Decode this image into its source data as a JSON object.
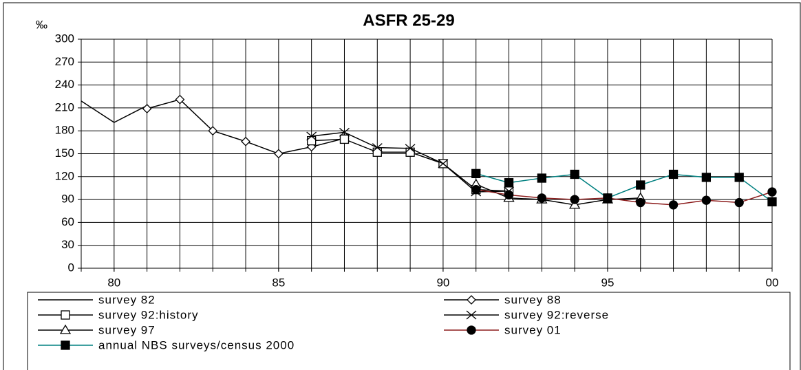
{
  "chart_data": {
    "type": "line",
    "title": "ASFR 25-29",
    "y_label": "‰",
    "xlim": [
      79,
      100
    ],
    "xticks": [
      80,
      85,
      90,
      95,
      {
        "value": 100,
        "label": "00"
      }
    ],
    "ylim": [
      0,
      300
    ],
    "yticks": [
      0,
      30,
      60,
      90,
      120,
      150,
      180,
      210,
      240,
      270,
      300
    ],
    "grid": true,
    "series": [
      {
        "name": "survey 82",
        "color": "#000000",
        "marker": "none",
        "marker_fill": "none",
        "x": [
          79,
          80,
          81
        ],
        "values": [
          219,
          191,
          213
        ]
      },
      {
        "name": "survey 88",
        "color": "#000000",
        "marker": "diamond",
        "marker_fill": "#ffffff",
        "x": [
          81,
          82,
          83,
          84,
          85,
          86,
          87
        ],
        "values": [
          209,
          221,
          180,
          166,
          150,
          159,
          170
        ]
      },
      {
        "name": "survey 92:history",
        "color": "#000000",
        "marker": "square",
        "marker_fill": "#ffffff",
        "x": [
          86,
          87,
          88,
          89,
          90,
          91,
          92
        ],
        "values": [
          167,
          169,
          152,
          152,
          137,
          103,
          101
        ]
      },
      {
        "name": "survey 92:reverse",
        "color": "#000000",
        "marker": "cross",
        "marker_fill": "none",
        "x": [
          86,
          87,
          88,
          89,
          90,
          91,
          92
        ],
        "values": [
          173,
          178,
          158,
          157,
          137,
          100,
          101
        ]
      },
      {
        "name": "survey 97",
        "color": "#000000",
        "marker": "triangle",
        "marker_fill": "#ffffff",
        "x": [
          91,
          92,
          93,
          94,
          95,
          96
        ],
        "values": [
          110,
          92,
          90,
          83,
          90,
          92
        ]
      },
      {
        "name": "survey 01",
        "color": "#8b1a1a",
        "marker": "circle",
        "marker_fill": "#000000",
        "x": [
          91,
          92,
          93,
          94,
          95,
          96,
          97,
          98,
          99,
          100
        ],
        "values": [
          103,
          96,
          92,
          90,
          92,
          86,
          83,
          89,
          86,
          100
        ]
      },
      {
        "name": "annual NBS surveys/census 2000",
        "color": "#008080",
        "marker": "square",
        "marker_fill": "#000000",
        "x": [
          91,
          92,
          93,
          94,
          95,
          96,
          97,
          98,
          99,
          100
        ],
        "values": [
          124,
          112,
          118,
          123,
          92,
          109,
          123,
          119,
          119,
          87
        ]
      }
    ]
  }
}
